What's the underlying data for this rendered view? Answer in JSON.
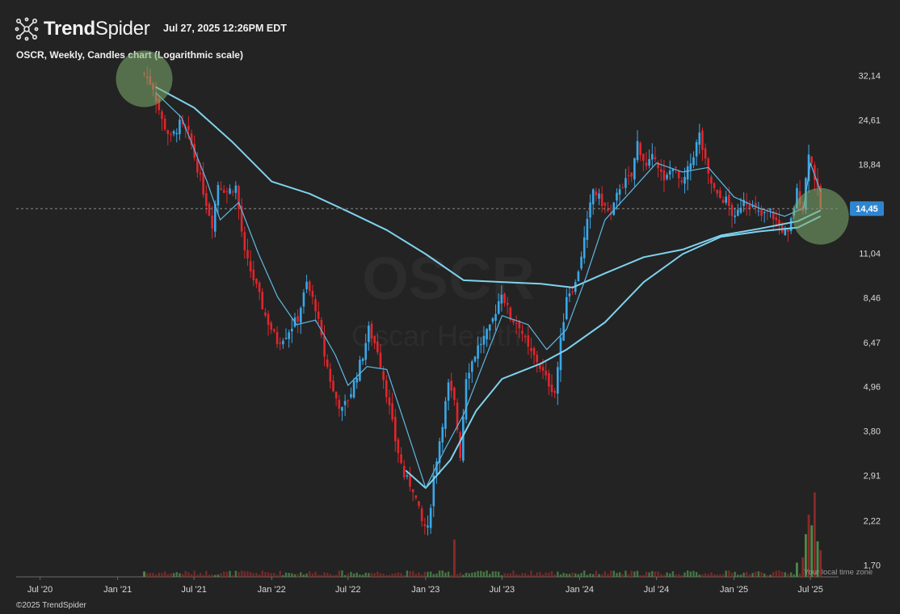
{
  "header": {
    "brand_bold": "Trend",
    "brand_light": "Spider",
    "timestamp": "Jul 27, 2025 12:26PM EDT"
  },
  "subtitle": "OSCR, Weekly, Candles chart (Logarithmic scale)",
  "watermark": {
    "symbol": "OSCR",
    "name": "Oscar Health"
  },
  "footer": {
    "copyright": "©2025 TrendSpider",
    "tz_note": "Your local time zone"
  },
  "colors": {
    "background": "#232323",
    "up": "#3aa8e8",
    "down": "#e0262c",
    "ma_long": "#7fd3ee",
    "ma_short": "#5fb8e6",
    "volume_up": "#4e8a4a",
    "volume_down": "#8a2a2a",
    "highlight": "#7fae70",
    "price_tag": "#2f86d0"
  },
  "chart_data": {
    "type": "candlestick",
    "scale": "log",
    "ticker": "OSCR",
    "interval": "Weekly",
    "current_price": "14,45",
    "y_ticks": [
      "32,14",
      "24,61",
      "18,84",
      "14,45",
      "11,04",
      "8,46",
      "6,47",
      "4,96",
      "3,80",
      "2,91",
      "2,22",
      "1,70"
    ],
    "y_tick_values": [
      32.14,
      24.61,
      18.84,
      14.45,
      11.04,
      8.46,
      6.47,
      4.96,
      3.8,
      2.91,
      2.22,
      1.7
    ],
    "ylim": [
      1.6,
      36
    ],
    "x_ticks": [
      "Jul '20",
      "Jan '21",
      "Jul '21",
      "Jan '22",
      "Jul '22",
      "Jan '23",
      "Jul '23",
      "Jan '24",
      "Jul '24",
      "Jan '25",
      "Jul '25"
    ],
    "x_tick_dates": [
      "2020-07-01",
      "2021-01-01",
      "2021-07-01",
      "2022-01-01",
      "2022-07-01",
      "2023-01-01",
      "2023-07-01",
      "2024-01-01",
      "2024-07-01",
      "2025-01-01",
      "2025-07-01"
    ],
    "xlim": [
      "2020-05-15",
      "2025-08-31"
    ],
    "close_path": [
      [
        "2021-03-05",
        32.5
      ],
      [
        "2021-03-26",
        30.0
      ],
      [
        "2021-04-16",
        24.5
      ],
      [
        "2021-05-07",
        22.0
      ],
      [
        "2021-05-28",
        24.0
      ],
      [
        "2021-06-18",
        22.5
      ],
      [
        "2021-07-09",
        18.5
      ],
      [
        "2021-07-30",
        15.0
      ],
      [
        "2021-08-13",
        13.2
      ],
      [
        "2021-08-27",
        16.8
      ],
      [
        "2021-09-17",
        16.0
      ],
      [
        "2021-10-08",
        16.5
      ],
      [
        "2021-10-29",
        11.0
      ],
      [
        "2021-11-26",
        9.0
      ],
      [
        "2021-12-17",
        7.6
      ],
      [
        "2022-01-14",
        6.5
      ],
      [
        "2022-02-04",
        6.8
      ],
      [
        "2022-03-04",
        7.5
      ],
      [
        "2022-03-25",
        9.2
      ],
      [
        "2022-04-15",
        8.0
      ],
      [
        "2022-05-06",
        6.0
      ],
      [
        "2022-05-27",
        4.8
      ],
      [
        "2022-06-17",
        4.3
      ],
      [
        "2022-07-08",
        4.8
      ],
      [
        "2022-08-05",
        6.0
      ],
      [
        "2022-08-19",
        7.0
      ],
      [
        "2022-09-09",
        6.2
      ],
      [
        "2022-09-30",
        4.8
      ],
      [
        "2022-10-21",
        3.6
      ],
      [
        "2022-11-11",
        2.9
      ],
      [
        "2022-12-02",
        2.7
      ],
      [
        "2022-12-23",
        2.2
      ],
      [
        "2023-01-06",
        2.1
      ],
      [
        "2023-01-20",
        2.9
      ],
      [
        "2023-02-03",
        3.6
      ],
      [
        "2023-02-24",
        5.0
      ],
      [
        "2023-03-10",
        4.5
      ],
      [
        "2023-03-24",
        3.3
      ],
      [
        "2023-04-07",
        5.3
      ],
      [
        "2023-05-05",
        6.3
      ],
      [
        "2023-06-02",
        7.0
      ],
      [
        "2023-06-30",
        8.8
      ],
      [
        "2023-07-21",
        7.5
      ],
      [
        "2023-08-11",
        7.2
      ],
      [
        "2023-09-01",
        6.2
      ],
      [
        "2023-09-22",
        5.8
      ],
      [
        "2023-10-13",
        5.2
      ],
      [
        "2023-11-03",
        4.8
      ],
      [
        "2023-11-17",
        6.5
      ],
      [
        "2023-12-01",
        8.6
      ],
      [
        "2023-12-22",
        9.2
      ],
      [
        "2024-01-12",
        12.0
      ],
      [
        "2024-02-02",
        16.2
      ],
      [
        "2024-02-23",
        15.0
      ],
      [
        "2024-03-15",
        13.8
      ],
      [
        "2024-04-05",
        16.5
      ],
      [
        "2024-05-03",
        17.5
      ],
      [
        "2024-05-17",
        21.5
      ],
      [
        "2024-06-07",
        18.5
      ],
      [
        "2024-06-28",
        20.0
      ],
      [
        "2024-07-19",
        16.8
      ],
      [
        "2024-08-09",
        18.8
      ],
      [
        "2024-08-30",
        16.5
      ],
      [
        "2024-09-20",
        19.0
      ],
      [
        "2024-10-11",
        22.5
      ],
      [
        "2024-11-01",
        17.5
      ],
      [
        "2024-11-22",
        15.5
      ],
      [
        "2024-12-13",
        15.2
      ],
      [
        "2025-01-03",
        13.5
      ],
      [
        "2025-01-24",
        15.5
      ],
      [
        "2025-02-14",
        14.5
      ],
      [
        "2025-03-07",
        13.8
      ],
      [
        "2025-03-28",
        14.2
      ],
      [
        "2025-04-18",
        13.0
      ],
      [
        "2025-05-09",
        12.3
      ],
      [
        "2025-05-30",
        16.0
      ],
      [
        "2025-06-13",
        14.5
      ],
      [
        "2025-06-27",
        20.5
      ],
      [
        "2025-07-11",
        17.5
      ],
      [
        "2025-07-25",
        14.45
      ]
    ],
    "ma_long": [
      [
        "2021-04-01",
        30.0
      ],
      [
        "2021-07-01",
        26.5
      ],
      [
        "2021-10-01",
        21.5
      ],
      [
        "2022-01-01",
        17.0
      ],
      [
        "2022-04-01",
        15.8
      ],
      [
        "2022-07-01",
        14.2
      ],
      [
        "2022-10-01",
        12.7
      ],
      [
        "2023-01-01",
        11.0
      ],
      [
        "2023-04-01",
        9.4
      ],
      [
        "2023-07-01",
        9.3
      ],
      [
        "2023-10-01",
        9.2
      ],
      [
        "2023-12-15",
        9.0
      ],
      [
        "2024-03-01",
        9.8
      ],
      [
        "2024-06-01",
        10.8
      ],
      [
        "2024-09-01",
        11.3
      ],
      [
        "2024-12-01",
        12.3
      ],
      [
        "2025-03-01",
        12.8
      ],
      [
        "2025-06-01",
        13.4
      ],
      [
        "2025-07-25",
        14.3
      ]
    ],
    "ma_mid": [
      [
        "2022-11-15",
        3.0
      ],
      [
        "2023-01-01",
        2.7
      ],
      [
        "2023-03-01",
        3.2
      ],
      [
        "2023-05-01",
        4.3
      ],
      [
        "2023-07-01",
        5.2
      ],
      [
        "2023-10-01",
        5.7
      ],
      [
        "2023-12-01",
        6.2
      ],
      [
        "2024-03-01",
        7.3
      ],
      [
        "2024-06-01",
        9.3
      ],
      [
        "2024-09-01",
        11.0
      ],
      [
        "2024-12-01",
        12.2
      ],
      [
        "2025-03-01",
        12.6
      ],
      [
        "2025-06-01",
        12.9
      ],
      [
        "2025-07-25",
        13.8
      ]
    ],
    "ma_short": [
      [
        "2021-04-01",
        29.0
      ],
      [
        "2021-06-01",
        25.0
      ],
      [
        "2021-08-01",
        17.0
      ],
      [
        "2021-09-01",
        13.5
      ],
      [
        "2021-10-15",
        15.0
      ],
      [
        "2021-12-01",
        11.0
      ],
      [
        "2022-01-15",
        8.5
      ],
      [
        "2022-03-01",
        7.2
      ],
      [
        "2022-04-15",
        7.4
      ],
      [
        "2022-06-01",
        6.0
      ],
      [
        "2022-07-01",
        5.0
      ],
      [
        "2022-08-15",
        5.6
      ],
      [
        "2022-10-01",
        5.5
      ],
      [
        "2022-11-15",
        3.9
      ],
      [
        "2023-01-01",
        2.7
      ],
      [
        "2023-02-15",
        3.4
      ],
      [
        "2023-04-01",
        4.2
      ],
      [
        "2023-05-15",
        5.6
      ],
      [
        "2023-07-01",
        7.6
      ],
      [
        "2023-09-01",
        7.2
      ],
      [
        "2023-10-15",
        6.2
      ],
      [
        "2023-12-01",
        7.0
      ],
      [
        "2024-01-15",
        9.5
      ],
      [
        "2024-03-01",
        13.5
      ],
      [
        "2024-05-01",
        16.0
      ],
      [
        "2024-07-01",
        19.0
      ],
      [
        "2024-09-01",
        18.0
      ],
      [
        "2024-11-01",
        18.5
      ],
      [
        "2025-01-01",
        15.5
      ],
      [
        "2025-03-01",
        14.5
      ],
      [
        "2025-05-01",
        13.8
      ],
      [
        "2025-06-15",
        14.5
      ],
      [
        "2025-07-01",
        19.0
      ],
      [
        "2025-07-25",
        16.0
      ]
    ],
    "volume_spikes": [
      [
        "2021-03-05",
        0.06
      ],
      [
        "2023-03-10",
        0.42
      ],
      [
        "2025-05-30",
        0.16
      ],
      [
        "2025-06-13",
        0.22
      ],
      [
        "2025-06-20",
        0.48
      ],
      [
        "2025-06-27",
        0.7
      ],
      [
        "2025-07-04",
        0.58
      ],
      [
        "2025-07-11",
        0.95
      ],
      [
        "2025-07-18",
        0.4
      ],
      [
        "2025-07-25",
        0.3
      ]
    ],
    "highlight_markers": [
      {
        "date": "2021-03-05",
        "value": 31.5
      },
      {
        "date": "2025-07-25",
        "value": 13.8
      }
    ]
  }
}
